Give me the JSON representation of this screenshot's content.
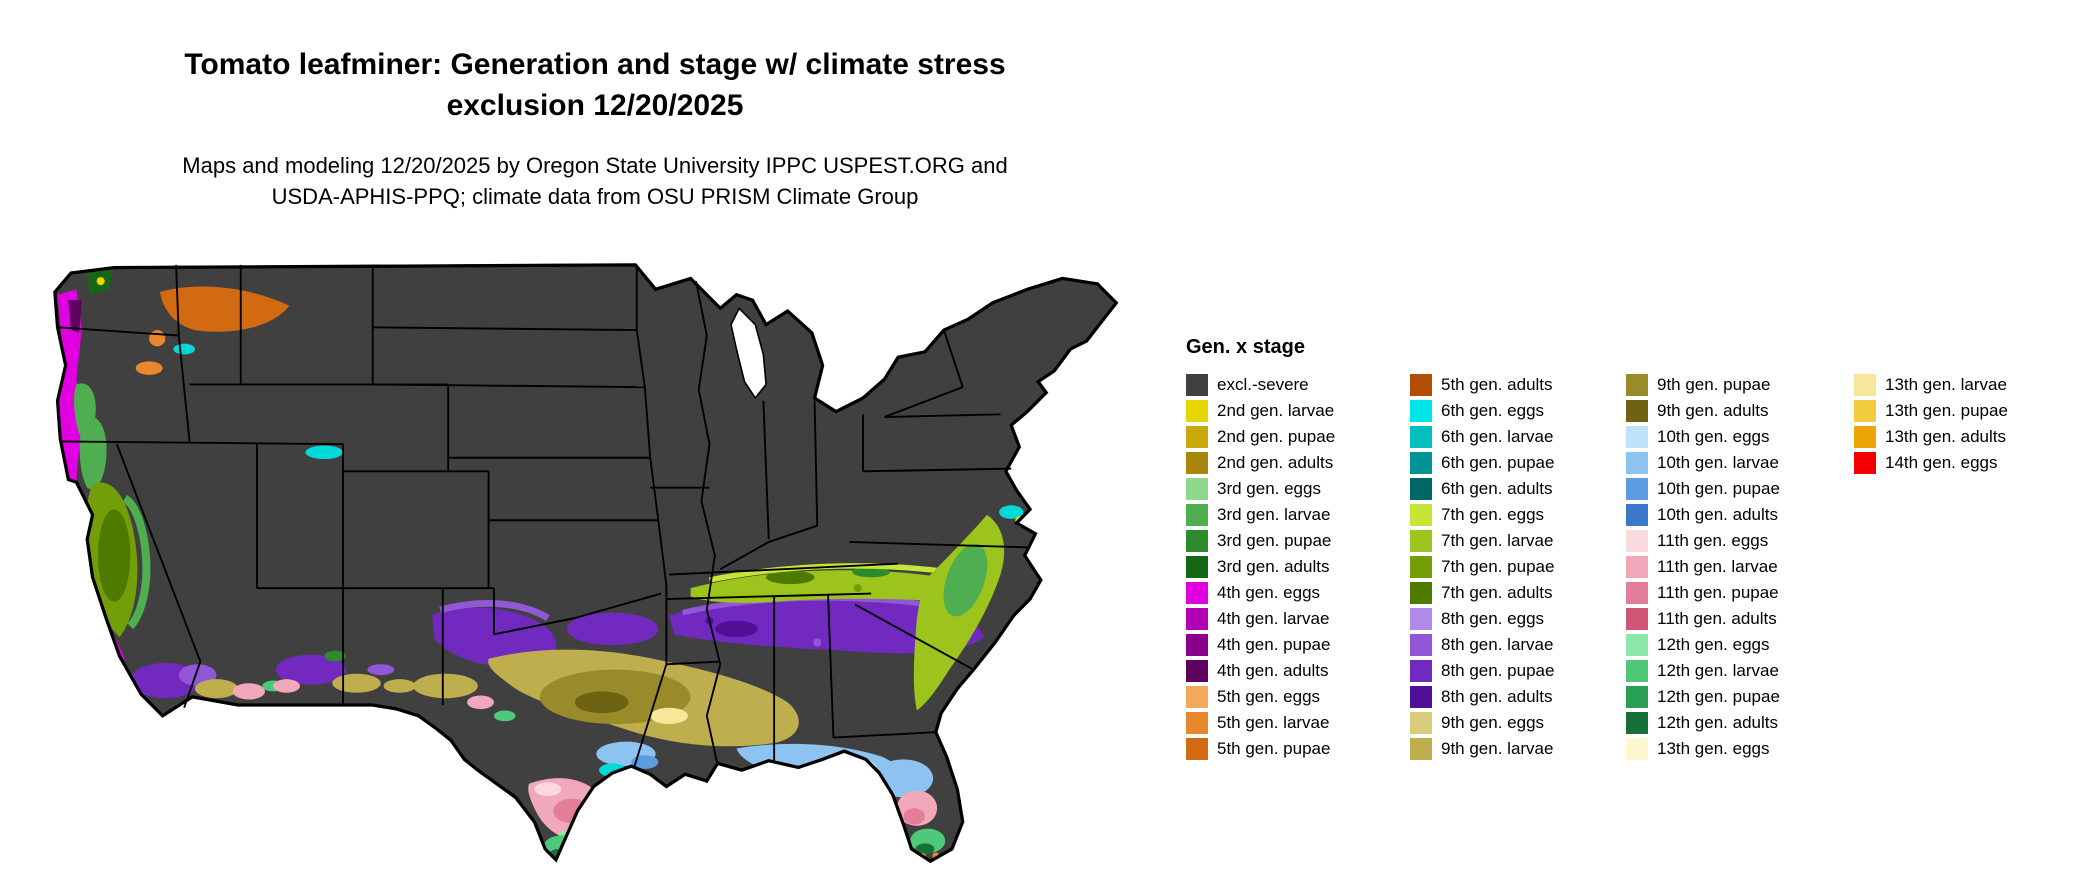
{
  "title": {
    "line1": "Tomato leafminer: Generation and stage w/ climate stress",
    "line2": "exclusion 12/20/2025"
  },
  "subtitle": {
    "line1": "Maps and modeling 12/20/2025 by Oregon State University IPPC USPEST.ORG and",
    "line2": "USDA-APHIS-PPQ; climate data from OSU PRISM Climate Group"
  },
  "legend": {
    "title": "Gen. x stage",
    "columns": [
      [
        {
          "label": "excl.-severe",
          "color": "#404040"
        },
        {
          "label": "2nd gen. larvae",
          "color": "#e6d700"
        },
        {
          "label": "2nd gen. pupae",
          "color": "#c9a90a"
        },
        {
          "label": "2nd gen. adults",
          "color": "#a8860b"
        },
        {
          "label": "3rd gen. eggs",
          "color": "#8fd98f"
        },
        {
          "label": "3rd gen. larvae",
          "color": "#4fae4f"
        },
        {
          "label": "3rd gen. pupae",
          "color": "#2d8b2d"
        },
        {
          "label": "3rd gen. adults",
          "color": "#156615"
        },
        {
          "label": "4th gen. eggs",
          "color": "#e100e1"
        },
        {
          "label": "4th gen. larvae",
          "color": "#b400b4"
        },
        {
          "label": "4th gen. pupae",
          "color": "#8b008b"
        },
        {
          "label": "4th gen. adults",
          "color": "#5e005e"
        },
        {
          "label": "5th gen. eggs",
          "color": "#f2a95c"
        },
        {
          "label": "5th gen. larvae",
          "color": "#e8872e"
        },
        {
          "label": "5th gen. pupae",
          "color": "#d26a12"
        }
      ],
      [
        {
          "label": "5th gen. adults",
          "color": "#b34e07"
        },
        {
          "label": "6th gen. eggs",
          "color": "#00e5e5"
        },
        {
          "label": "6th gen. larvae",
          "color": "#00bfbf"
        },
        {
          "label": "6th gen. pupae",
          "color": "#009595"
        },
        {
          "label": "6th gen. adults",
          "color": "#006666"
        },
        {
          "label": "7th gen. eggs",
          "color": "#c6e637"
        },
        {
          "label": "7th gen. larvae",
          "color": "#9cc41c"
        },
        {
          "label": "7th gen. pupae",
          "color": "#739e07"
        },
        {
          "label": "7th gen. adults",
          "color": "#4e7a00"
        },
        {
          "label": "8th gen. eggs",
          "color": "#b18ae8"
        },
        {
          "label": "8th gen. larvae",
          "color": "#9257d6"
        },
        {
          "label": "8th gen. pupae",
          "color": "#7229c0"
        },
        {
          "label": "8th gen. adults",
          "color": "#4f0f96"
        },
        {
          "label": "9th gen. eggs",
          "color": "#d9cc7a"
        },
        {
          "label": "9th gen. larvae",
          "color": "#bfae4e"
        }
      ],
      [
        {
          "label": "9th gen. pupae",
          "color": "#998a2a"
        },
        {
          "label": "9th gen. adults",
          "color": "#6e6312"
        },
        {
          "label": "10th gen. eggs",
          "color": "#bfe3fa"
        },
        {
          "label": "10th gen. larvae",
          "color": "#8cc3f0"
        },
        {
          "label": "10th gen. pupae",
          "color": "#5c9de2"
        },
        {
          "label": "10th gen. adults",
          "color": "#3b78cc"
        },
        {
          "label": "11th gen. eggs",
          "color": "#fbdade"
        },
        {
          "label": "11th gen. larvae",
          "color": "#f2a8bb"
        },
        {
          "label": "11th gen. pupae",
          "color": "#e27e97"
        },
        {
          "label": "11th gen. adults",
          "color": "#cf5677"
        },
        {
          "label": "12th gen. eggs",
          "color": "#8ce8a8"
        },
        {
          "label": "12th gen. larvae",
          "color": "#4cc979"
        },
        {
          "label": "12th gen. pupae",
          "color": "#2b9e56"
        },
        {
          "label": "12th gen. adults",
          "color": "#177039"
        },
        {
          "label": "13th gen. eggs",
          "color": "#fdf6cf"
        }
      ],
      [
        {
          "label": "13th gen. larvae",
          "color": "#f8e69b"
        },
        {
          "label": "13th gen. pupae",
          "color": "#f2cc3f"
        },
        {
          "label": "13th gen. adults",
          "color": "#eca706"
        },
        {
          "label": "14th gen. eggs",
          "color": "#f50000"
        }
      ]
    ]
  }
}
